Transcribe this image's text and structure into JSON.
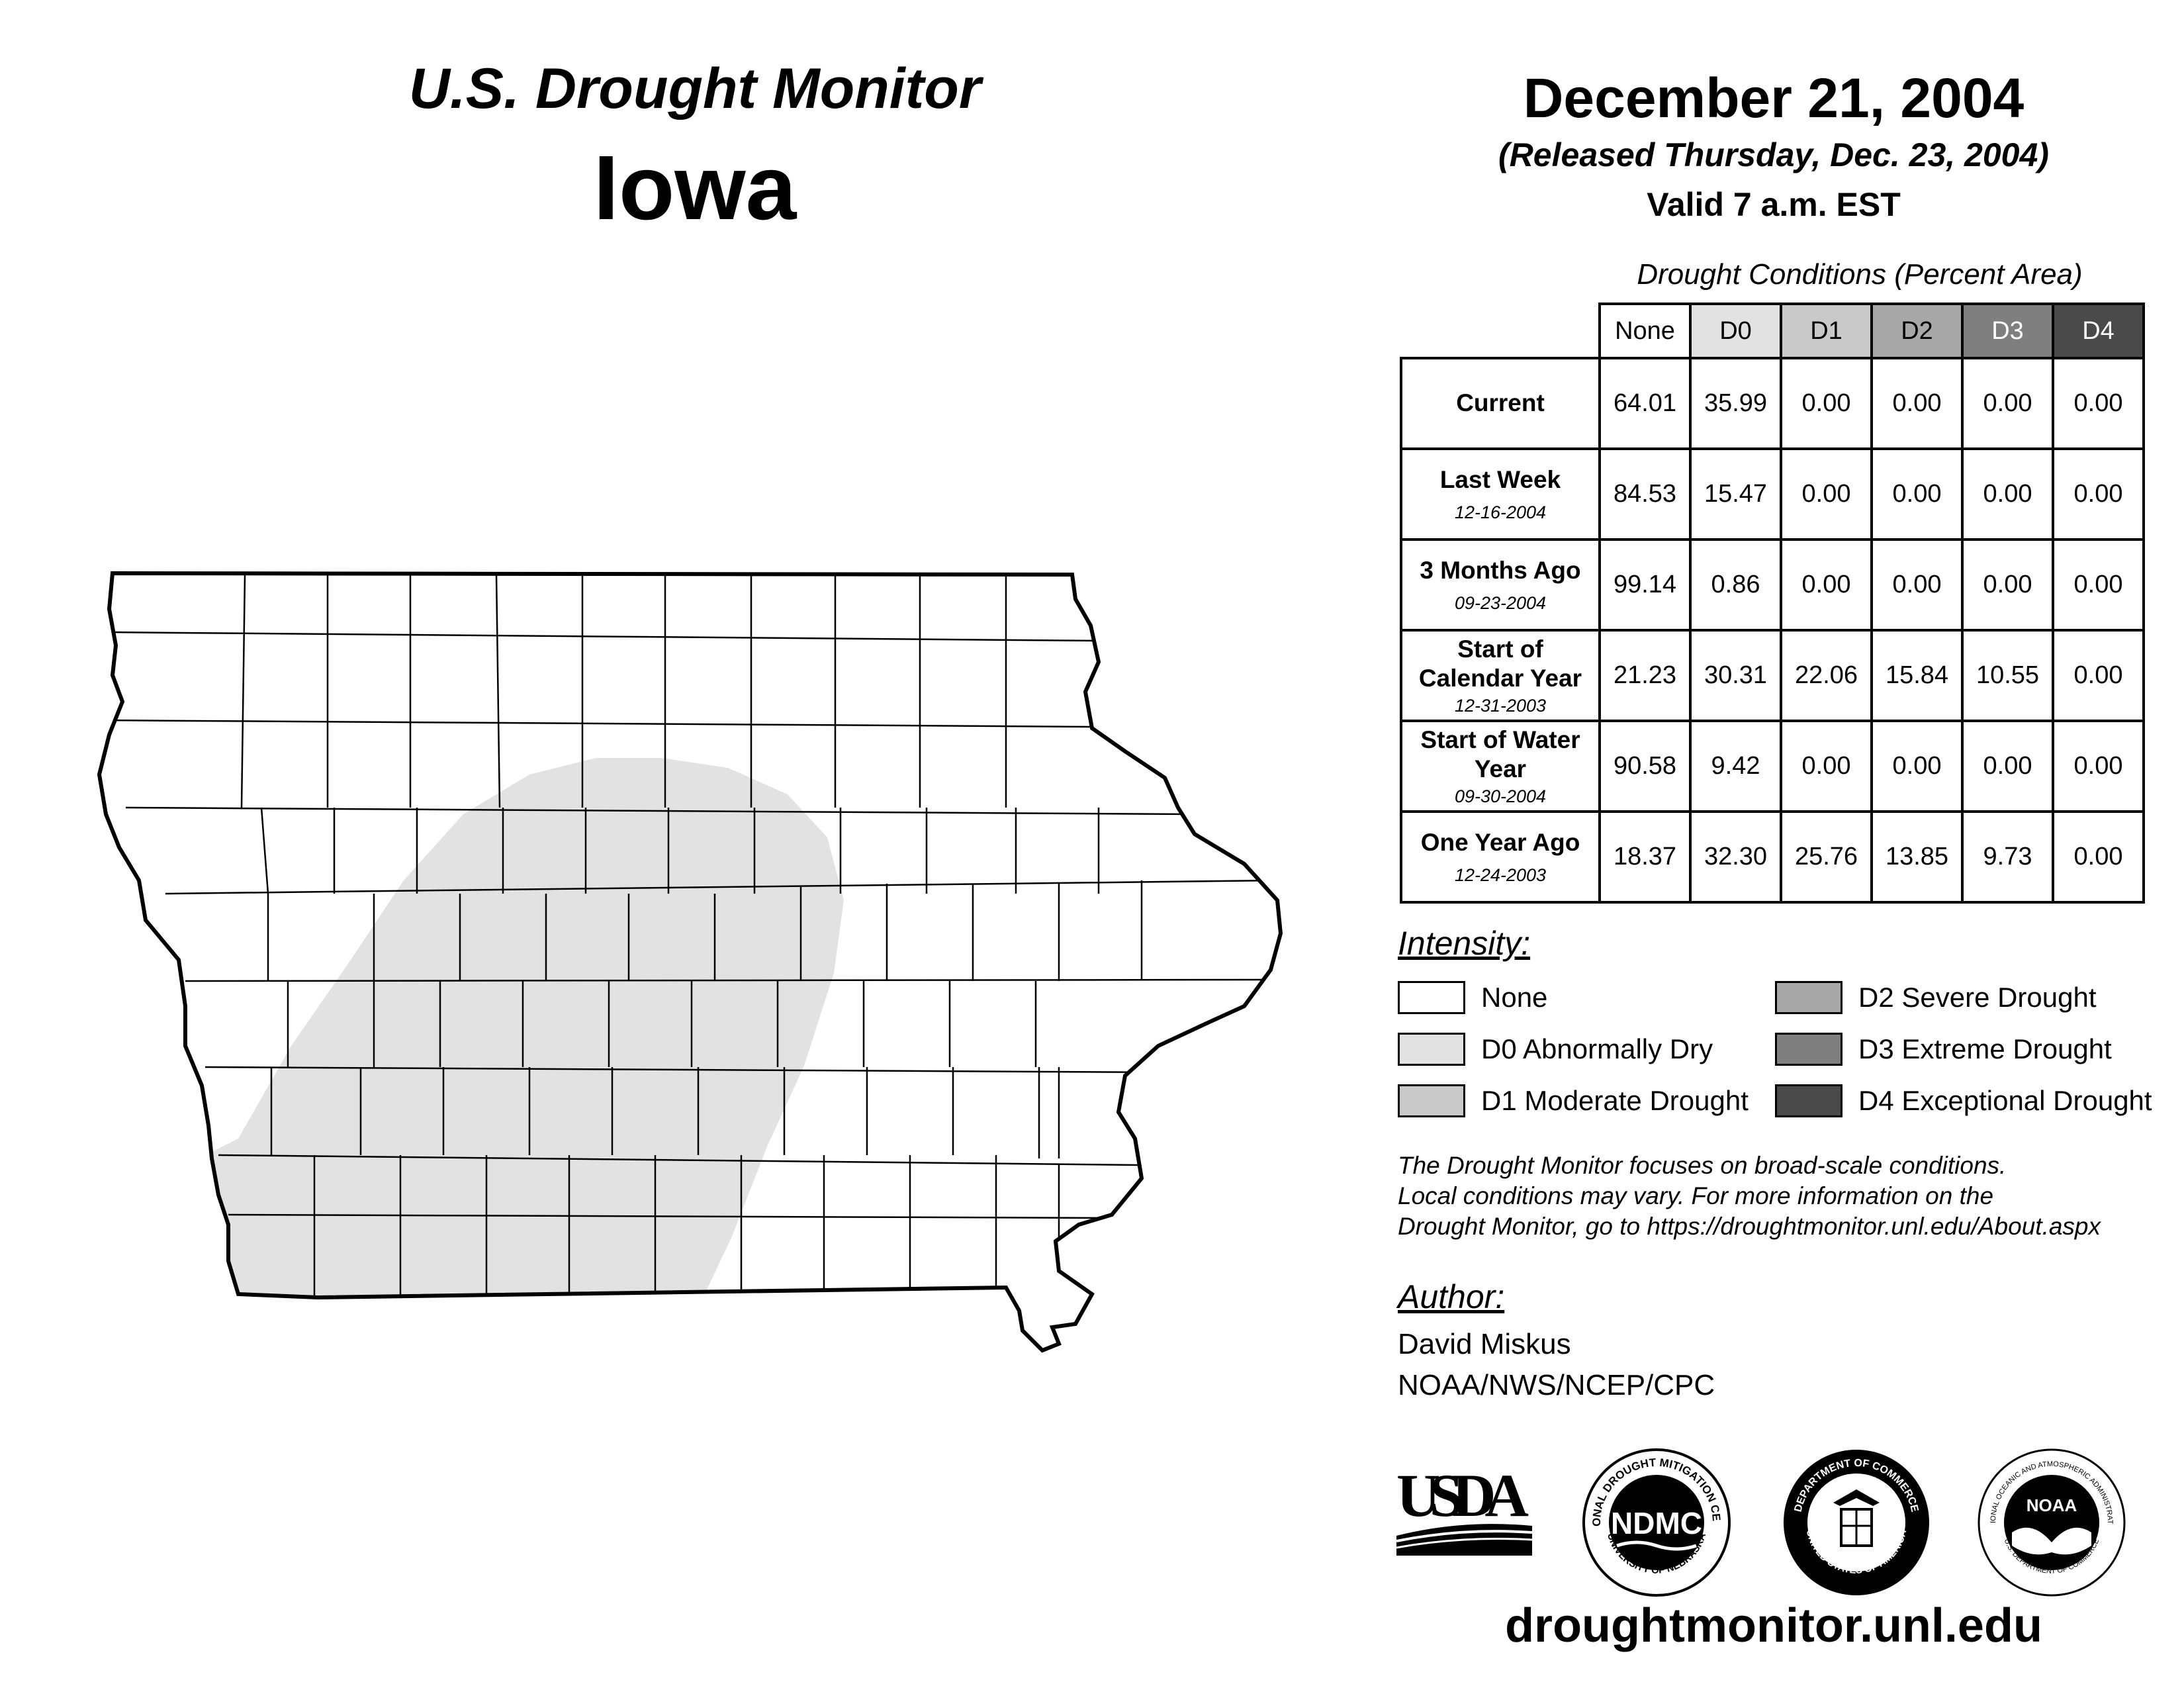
{
  "header": {
    "title": "U.S. Drought Monitor",
    "state": "Iowa",
    "date": "December 21, 2004",
    "released": "(Released Thursday, Dec. 23, 2004)",
    "valid": "Valid 7 a.m. EST"
  },
  "table": {
    "caption": "Drought Conditions (Percent Area)",
    "columns": [
      "None",
      "D0",
      "D1",
      "D2",
      "D3",
      "D4"
    ],
    "rows": [
      {
        "label": "Current",
        "date": "",
        "values": [
          "64.01",
          "35.99",
          "0.00",
          "0.00",
          "0.00",
          "0.00"
        ]
      },
      {
        "label": "Last Week",
        "date": "12-16-2004",
        "values": [
          "84.53",
          "15.47",
          "0.00",
          "0.00",
          "0.00",
          "0.00"
        ]
      },
      {
        "label": "3 Months Ago",
        "date": "09-23-2004",
        "values": [
          "99.14",
          "0.86",
          "0.00",
          "0.00",
          "0.00",
          "0.00"
        ]
      },
      {
        "label": "Start of Calendar Year",
        "date": "12-31-2003",
        "values": [
          "21.23",
          "30.31",
          "22.06",
          "15.84",
          "10.55",
          "0.00"
        ]
      },
      {
        "label": "Start of Water Year",
        "date": "09-30-2004",
        "values": [
          "90.58",
          "9.42",
          "0.00",
          "0.00",
          "0.00",
          "0.00"
        ]
      },
      {
        "label": "One Year Ago",
        "date": "12-24-2003",
        "values": [
          "18.37",
          "32.30",
          "25.76",
          "13.85",
          "9.73",
          "0.00"
        ]
      }
    ]
  },
  "legend": {
    "title": "Intensity:",
    "items": [
      {
        "label": "None",
        "color": "#ffffff"
      },
      {
        "label": "D0 Abnormally Dry",
        "color": "#e2e2e2"
      },
      {
        "label": "D1 Moderate Drought",
        "color": "#c9c9c9"
      },
      {
        "label": "D2 Severe Drought",
        "color": "#a8a8a8"
      },
      {
        "label": "D3 Extreme Drought",
        "color": "#7f7f7f"
      },
      {
        "label": "D4 Exceptional Drought",
        "color": "#4a4a4a"
      }
    ]
  },
  "note": {
    "line1": "The Drought Monitor focuses on broad-scale conditions.",
    "line2": "Local conditions may vary. For more information on the",
    "line3": "Drought Monitor, go to https://droughtmonitor.unl.edu/About.aspx"
  },
  "author": {
    "title": "Author:",
    "name": "David Miskus",
    "org": "NOAA/NWS/NCEP/CPC"
  },
  "logos": {
    "usda": "USDA",
    "ndmc": "NDMC",
    "ndmc_ring": "NATIONAL DROUGHT MITIGATION CENTER",
    "ndmc_ring_bottom": "UNIVERSITY OF NEBRASKA",
    "doc_ring": "DEPARTMENT OF COMMERCE",
    "doc_ring_bottom": "UNITED STATES OF AMERICA",
    "noaa": "NOAA",
    "noaa_ring": "NATIONAL OCEANIC AND ATMOSPHERIC ADMINISTRATION",
    "noaa_ring_bottom": "U.S. DEPARTMENT OF COMMERCE"
  },
  "site": "droughtmonitor.unl.edu",
  "map": {
    "state": "Iowa",
    "d0_color": "#e2e2e2",
    "outline_color": "#000000"
  }
}
